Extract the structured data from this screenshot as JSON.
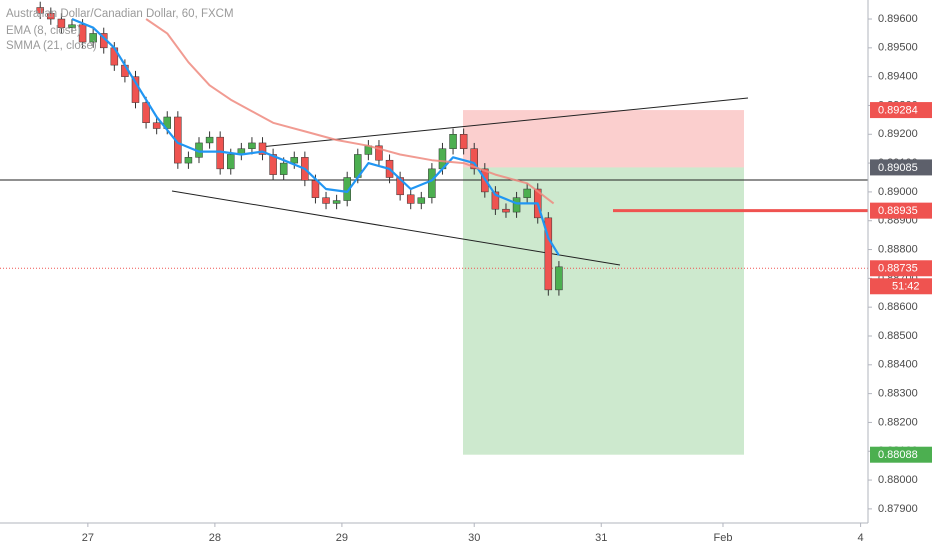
{
  "chart_data": {
    "type": "candlestick",
    "legend": [
      "Australian Dollar/Canadian Dollar, 60, FXCM"
    ],
    "candles": {
      "x": [
        -9,
        -7,
        -5,
        -3,
        -1,
        1,
        3,
        5,
        7,
        9,
        11,
        13,
        15,
        17,
        19,
        21,
        23,
        25,
        27,
        29,
        31,
        33,
        35,
        37,
        39,
        41,
        43,
        45,
        47,
        49,
        51,
        53,
        55,
        57,
        59,
        61,
        63,
        65,
        67,
        69,
        71,
        73,
        75,
        77,
        79,
        81,
        83,
        85,
        87,
        89
      ],
      "open": [
        0.8964,
        0.8962,
        0.896,
        0.8957,
        0.8958,
        0.8952,
        0.8955,
        0.895,
        0.8944,
        0.894,
        0.8931,
        0.8924,
        0.8922,
        0.8926,
        0.891,
        0.8912,
        0.8917,
        0.8919,
        0.8908,
        0.8913,
        0.8915,
        0.8917,
        0.8913,
        0.8906,
        0.891,
        0.8912,
        0.8904,
        0.8898,
        0.8896,
        0.8897,
        0.8905,
        0.8913,
        0.8916,
        0.8911,
        0.8905,
        0.8899,
        0.8896,
        0.8898,
        0.8908,
        0.8915,
        0.892,
        0.8915,
        0.8908,
        0.89,
        0.8894,
        0.8893,
        0.8898,
        0.8901,
        0.8891,
        0.8866
      ],
      "high": [
        0.8966,
        0.8964,
        0.8962,
        0.896,
        0.896,
        0.8957,
        0.8957,
        0.8952,
        0.8946,
        0.8942,
        0.8933,
        0.8926,
        0.8928,
        0.8928,
        0.8914,
        0.8919,
        0.8921,
        0.8921,
        0.8915,
        0.8917,
        0.8919,
        0.8919,
        0.8915,
        0.8912,
        0.8914,
        0.8914,
        0.8906,
        0.89,
        0.8899,
        0.8907,
        0.8915,
        0.8918,
        0.8918,
        0.8913,
        0.8907,
        0.8901,
        0.89,
        0.891,
        0.8917,
        0.8922,
        0.8922,
        0.8917,
        0.891,
        0.8902,
        0.8896,
        0.89,
        0.8903,
        0.8903,
        0.8893,
        0.8876
      ],
      "low": [
        0.896,
        0.8958,
        0.8955,
        0.8955,
        0.895,
        0.895,
        0.8948,
        0.8942,
        0.8938,
        0.8929,
        0.8922,
        0.892,
        0.892,
        0.8908,
        0.8908,
        0.891,
        0.8915,
        0.8906,
        0.8906,
        0.8911,
        0.8913,
        0.8911,
        0.8904,
        0.8904,
        0.8908,
        0.8902,
        0.8896,
        0.8894,
        0.8894,
        0.8895,
        0.8903,
        0.8911,
        0.8909,
        0.8903,
        0.8897,
        0.8894,
        0.8894,
        0.8896,
        0.8906,
        0.8913,
        0.8913,
        0.8906,
        0.8898,
        0.8892,
        0.8891,
        0.8891,
        0.8896,
        0.8889,
        0.8864,
        0.8864
      ],
      "close": [
        0.8962,
        0.896,
        0.8957,
        0.8958,
        0.8952,
        0.8955,
        0.895,
        0.8944,
        0.894,
        0.8931,
        0.8924,
        0.8922,
        0.8926,
        0.891,
        0.8912,
        0.8917,
        0.8919,
        0.8908,
        0.8913,
        0.8915,
        0.8917,
        0.8913,
        0.8906,
        0.891,
        0.8912,
        0.8904,
        0.8898,
        0.8896,
        0.8897,
        0.8905,
        0.8913,
        0.8916,
        0.8911,
        0.8905,
        0.8899,
        0.8896,
        0.8898,
        0.8908,
        0.8915,
        0.892,
        0.8915,
        0.8908,
        0.89,
        0.8894,
        0.8893,
        0.8898,
        0.8901,
        0.8891,
        0.8866,
        0.8874
      ],
      "up_color": "#4caf50",
      "down_color": "#ef5350"
    },
    "lines": [
      {
        "name": "EMA (8, close)",
        "color": "#2196f3",
        "x": [
          -3,
          1,
          5,
          9,
          13,
          17,
          21,
          25,
          29,
          33,
          37,
          41,
          45,
          49,
          53,
          57,
          61,
          65,
          69,
          73,
          77,
          81,
          85,
          87,
          89
        ],
        "values": [
          0.896,
          0.8957,
          0.895,
          0.8938,
          0.8926,
          0.8917,
          0.8914,
          0.8914,
          0.8913,
          0.8914,
          0.8911,
          0.8908,
          0.8901,
          0.89,
          0.891,
          0.8908,
          0.8901,
          0.8904,
          0.8912,
          0.891,
          0.8899,
          0.8896,
          0.8896,
          0.8884,
          0.8878
        ]
      },
      {
        "name": "SMMA (21, close)",
        "color": "#ef8a7f",
        "x": [
          11,
          15,
          19,
          23,
          27,
          31,
          35,
          41,
          47,
          53,
          59,
          65,
          71,
          77,
          83,
          88
        ],
        "values": [
          0.896,
          0.8955,
          0.8945,
          0.8937,
          0.8932,
          0.8928,
          0.8924,
          0.8921,
          0.8918,
          0.8916,
          0.8913,
          0.8911,
          0.891,
          0.8906,
          0.8903,
          0.8896
        ]
      }
    ],
    "price_labels": [
      {
        "value": 0.89284,
        "color": "#ef5350"
      },
      {
        "value": 0.89085,
        "color": "#5d606b"
      },
      {
        "value": 0.88935,
        "color": "#ef5350"
      },
      {
        "value": 0.88735,
        "color": "#ef5350"
      },
      {
        "value": 0.88088,
        "color": "#4caf50"
      }
    ],
    "timer": "51:42",
    "xlim": [
      -16.6,
      147.4
    ],
    "ylim": [
      0.87851,
      0.89666
    ],
    "xticks": [
      {
        "value": 0,
        "label": "27"
      },
      {
        "value": 24,
        "label": "28"
      },
      {
        "value": 48,
        "label": "29"
      },
      {
        "value": 73,
        "label": "30"
      },
      {
        "value": 97,
        "label": "31"
      },
      {
        "value": 120,
        "label": "Feb"
      },
      {
        "value": 146,
        "label": "4"
      }
    ],
    "yticks": [
      {
        "value": 0.896,
        "label": "0.89600"
      },
      {
        "value": 0.895,
        "label": "0.89500"
      },
      {
        "value": 0.894,
        "label": "0.89400"
      },
      {
        "value": 0.893,
        "label": "0.89300"
      },
      {
        "value": 0.892,
        "label": "0.89200"
      },
      {
        "value": 0.891,
        "label": "0.89100"
      },
      {
        "value": 0.89,
        "label": "0.89000"
      },
      {
        "value": 0.889,
        "label": "0.88900"
      },
      {
        "value": 0.888,
        "label": "0.88800"
      },
      {
        "value": 0.887,
        "label": "0.88700"
      },
      {
        "value": 0.886,
        "label": "0.88600"
      },
      {
        "value": 0.885,
        "label": "0.88500"
      },
      {
        "value": 0.884,
        "label": "0.88400"
      },
      {
        "value": 0.883,
        "label": "0.88300"
      },
      {
        "value": 0.882,
        "label": "0.88200"
      },
      {
        "value": 0.881,
        "label": "0.88100"
      },
      {
        "value": 0.88,
        "label": "0.88000"
      },
      {
        "value": 0.879,
        "label": "0.87900"
      }
    ],
    "grid": false
  }
}
